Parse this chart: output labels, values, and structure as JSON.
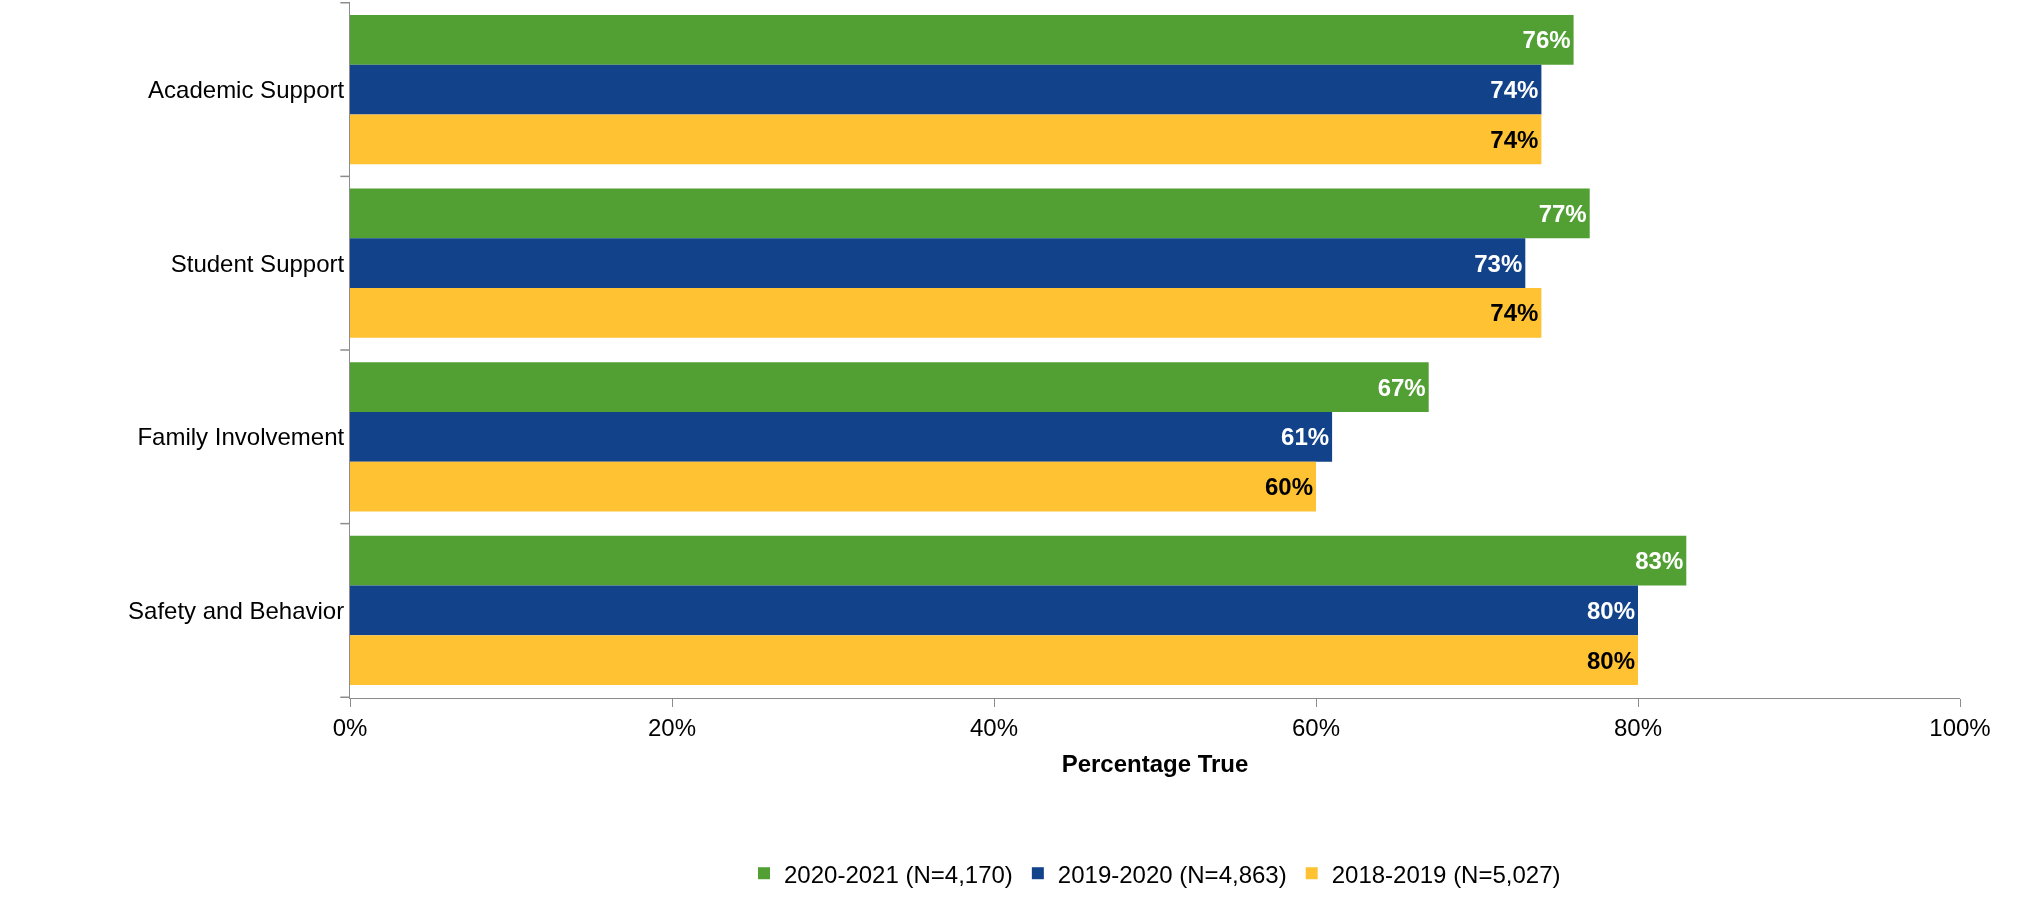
{
  "chart_data": {
    "type": "bar",
    "orientation": "horizontal",
    "xlabel": "Percentage True",
    "categories": [
      "Academic Support",
      "Student Support",
      "Family Involvement",
      "Safety and Behavior"
    ],
    "series": [
      {
        "name": "2020-2021 (N=4,170)",
        "color": "#52a034",
        "values": [
          76,
          77,
          67,
          83
        ],
        "value_labels": [
          "76%",
          "77%",
          "67%",
          "83%"
        ]
      },
      {
        "name": "2019-2020 (N=4,863)",
        "color": "#124289",
        "values": [
          74,
          73,
          61,
          80
        ],
        "value_labels": [
          "74%",
          "73%",
          "61%",
          "80%"
        ]
      },
      {
        "name": "2018-2019 (N=5,027)",
        "color": "#fec232",
        "values": [
          74,
          74,
          60,
          80
        ],
        "value_labels": [
          "74%",
          "74%",
          "60%",
          "80%"
        ]
      }
    ],
    "xlim": [
      0,
      100
    ],
    "xticks": [
      {
        "value": 0,
        "label": "0%"
      },
      {
        "value": 20,
        "label": "20%"
      },
      {
        "value": 40,
        "label": "40%"
      },
      {
        "value": 60,
        "label": "60%"
      },
      {
        "value": 80,
        "label": "80%"
      },
      {
        "value": 100,
        "label": "100%"
      }
    ],
    "legend": "bottom"
  }
}
